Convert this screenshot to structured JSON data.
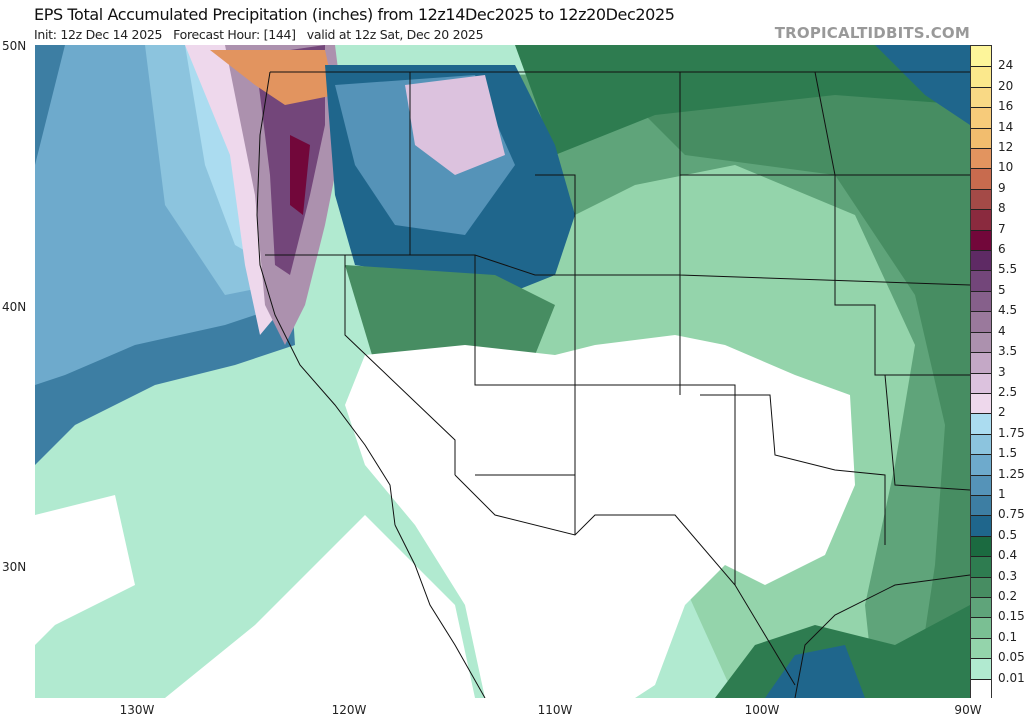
{
  "header": {
    "title": "EPS Total Accumulated Precipitation (inches) from 12z14Dec2025 to 12z20Dec2025",
    "subtitle": "Init: 12z Dec 14 2025   Forecast Hour: [144]   valid at 12z Sat, Dec 20 2025",
    "brand": "TROPICALTIDBITS.COM"
  },
  "axes": {
    "lat_labels": [
      "50N",
      "40N",
      "30N"
    ],
    "lon_labels": [
      "130W",
      "120W",
      "110W",
      "100W",
      "90W"
    ]
  },
  "colorbar": {
    "labels": [
      "24",
      "20",
      "16",
      "14",
      "12",
      "10",
      "9",
      "8",
      "7",
      "6",
      "5.5",
      "5",
      "4.5",
      "4",
      "3.5",
      "3",
      "2.5",
      "2",
      "1.75",
      "1.5",
      "1.25",
      "1",
      "0.75",
      "0.5",
      "0.4",
      "0.3",
      "0.2",
      "0.15",
      "0.1",
      "0.05",
      "0.01"
    ],
    "colors": [
      "#fdf59a",
      "#fbe88c",
      "#f9d985",
      "#f7cb7a",
      "#f2bd6e",
      "#e2945f",
      "#c86b4e",
      "#a44a47",
      "#8a2a3e",
      "#72073a",
      "#5e2a64",
      "#73467a",
      "#86608b",
      "#9a799c",
      "#ac91ae",
      "#c4a8c6",
      "#dcc2de",
      "#eed8ec",
      "#abdcf0",
      "#8cc4de",
      "#6eaacc",
      "#5593b8",
      "#3d7ea3",
      "#1f668c",
      "#1b6a40",
      "#2e7c50",
      "#478d62",
      "#5fa47a",
      "#7abf93",
      "#94d4ab",
      "#b1ead0",
      "#ffffff"
    ]
  }
}
